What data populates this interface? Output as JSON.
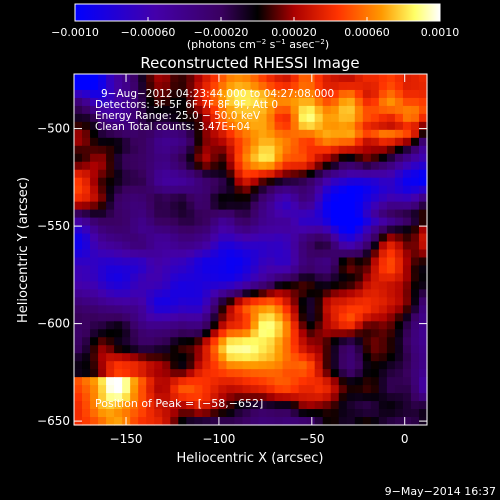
{
  "chart_data": {
    "type": "heatmap",
    "title": "Reconstructed RHESSI Image",
    "xlabel": "Heliocentric X (arcsec)",
    "ylabel": "Heliocentric Y (arcsec)",
    "xlim": [
      -178,
      12
    ],
    "ylim": [
      -652,
      -472
    ],
    "x_ticks": [
      -150,
      -100,
      -50,
      0
    ],
    "x_tick_labels": [
      "−150",
      "−100",
      "−50",
      "0"
    ],
    "y_ticks": [
      -500,
      -550,
      -600,
      -650
    ],
    "y_tick_labels": [
      "−500",
      "−550",
      "−600",
      "−650"
    ],
    "colorbar": {
      "min": -0.001,
      "max": 0.001,
      "ticks": [
        -0.001,
        -0.0006,
        -0.0002,
        0.0002,
        0.0006,
        0.001
      ],
      "tick_labels": [
        "−0.0010",
        "−0.00060",
        "−0.00020",
        "0.00020",
        "0.00060",
        "0.0010"
      ],
      "unit_parts": {
        "p1": "(photons cm",
        "e1": "−2",
        "p2": " s",
        "e2": "−1",
        "p3": " asec",
        "e3": "−2",
        "p4": ")"
      },
      "colors": [
        "#0000ff",
        "#4400aa",
        "#3a0060",
        "#000000",
        "#aa0000",
        "#ff3300",
        "#ff9900",
        "#ffff66",
        "#ffffff"
      ]
    },
    "annotations": [
      "9−Aug−2012 04:23:44.000 to 04:27:08.000",
      "Detectors: 3F 5F 6F 7F 8F 9F, Att 0",
      "Energy Range: 25.0 − 50.0 keV",
      "Clean     Total counts: 3.47E+04"
    ],
    "peak_label": "Position of Peak = [−58,−652]",
    "peak_position": [
      -58,
      -652
    ]
  },
  "footer": {
    "timestamp": "9−May−2014 16:37"
  }
}
